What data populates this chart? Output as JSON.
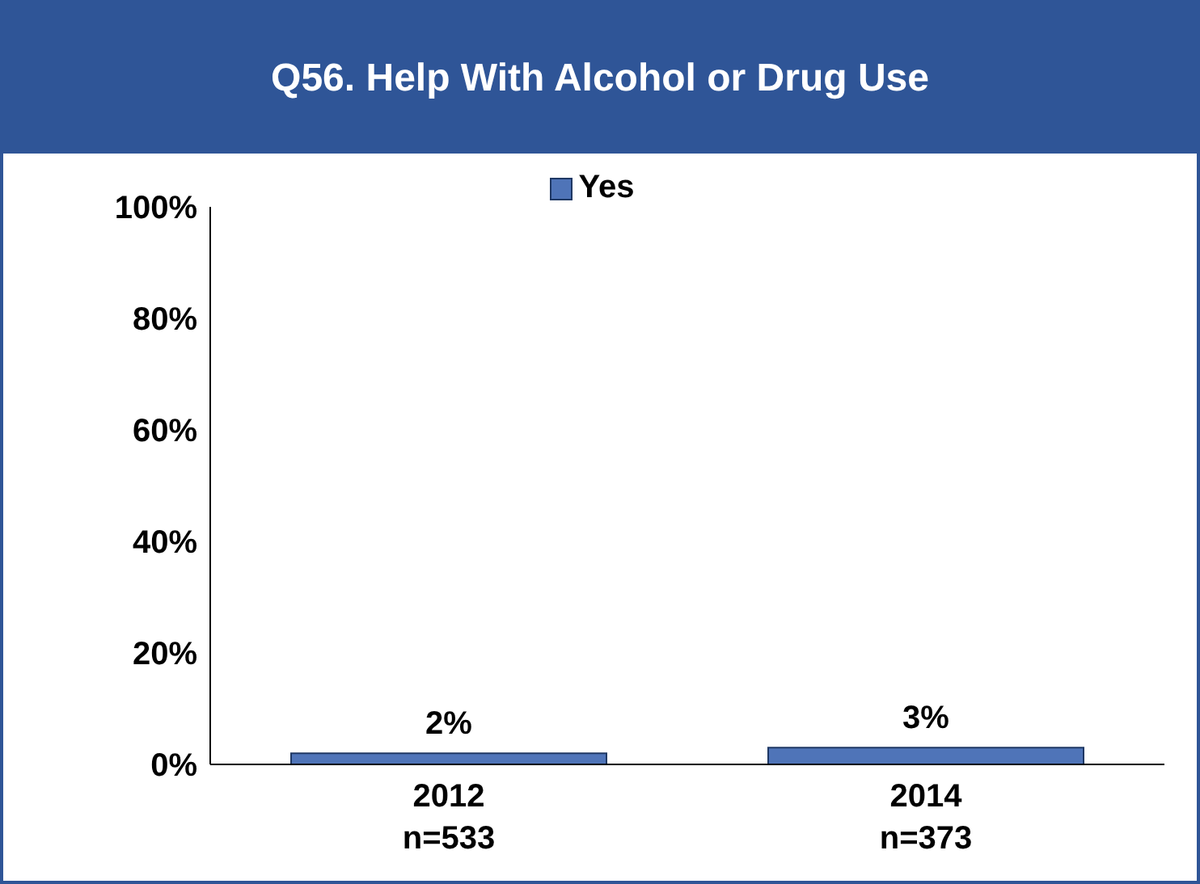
{
  "chart_data": {
    "type": "bar",
    "title": "Q56.  Help With Alcohol or Drug Use",
    "categories": [
      "2012\nn=533",
      "2014\nn=373"
    ],
    "series": [
      {
        "name": "Yes",
        "color": "#4f74b8",
        "values": [
          2,
          3
        ],
        "value_labels": [
          "2%",
          "3%"
        ]
      }
    ],
    "ylim": [
      0,
      100
    ],
    "yticks": [
      {
        "value": 0,
        "label": "0%"
      },
      {
        "value": 20,
        "label": "20%"
      },
      {
        "value": 40,
        "label": "40%"
      },
      {
        "value": 60,
        "label": "60%"
      },
      {
        "value": 80,
        "label": "80%"
      },
      {
        "value": 100,
        "label": "100%"
      }
    ],
    "grid": false,
    "legend": "top"
  }
}
